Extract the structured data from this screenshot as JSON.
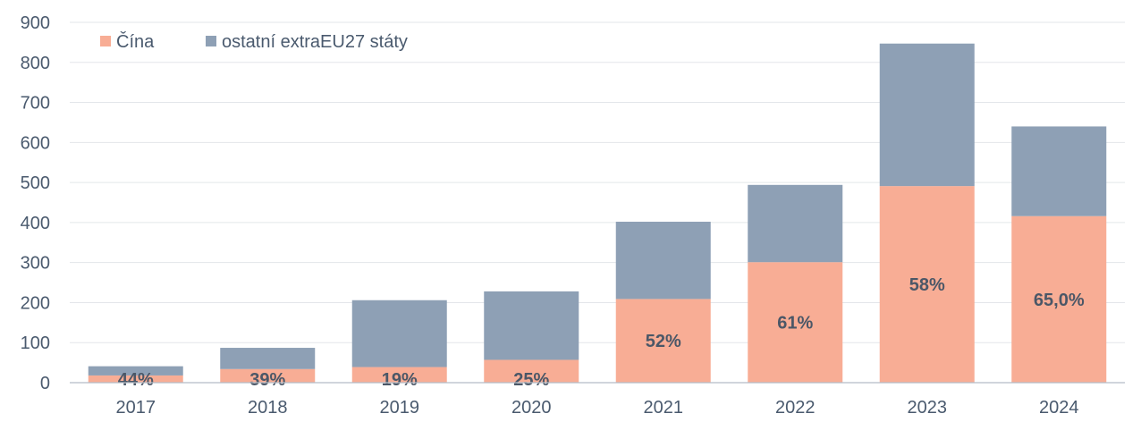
{
  "chart_data": {
    "type": "bar",
    "stacked": true,
    "categories": [
      "2017",
      "2018",
      "2019",
      "2020",
      "2021",
      "2022",
      "2023",
      "2024"
    ],
    "series": [
      {
        "name": "Čína",
        "color": "#f8ad95",
        "values": [
          18,
          34,
          39,
          57,
          209,
          301,
          491,
          416
        ],
        "labels": [
          "44%",
          "39%",
          "19%",
          "25%",
          "52%",
          "61%",
          "58%",
          "65,0%"
        ]
      },
      {
        "name": "ostatní extraEU27 státy",
        "color": "#8ea0b5",
        "values": [
          23,
          53,
          167,
          171,
          193,
          193,
          356,
          224
        ]
      }
    ],
    "ylim": [
      0,
      900
    ],
    "yticks": [
      "0",
      "100",
      "200",
      "300",
      "400",
      "500",
      "600",
      "700",
      "800",
      "900"
    ],
    "grid": true,
    "legend_position": "top-left",
    "colors": {
      "axis_text": "#4a5a6e",
      "label_text": "#4b5767"
    }
  }
}
